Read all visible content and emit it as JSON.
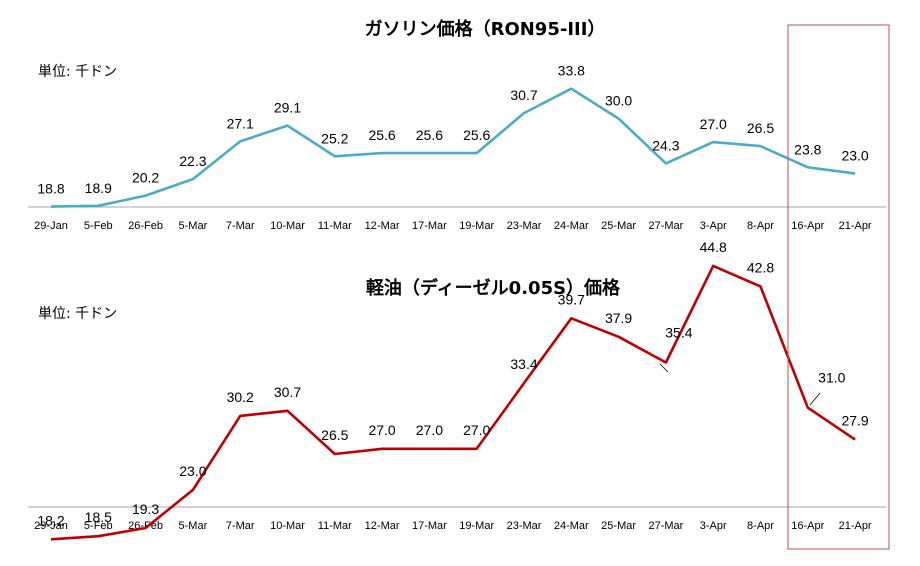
{
  "highlight_color": "#c0504d",
  "chart_data": [
    {
      "type": "line",
      "title": "ガソリン価格（RON95-III）",
      "unit_label": "単位: 千ドン",
      "color": "#4bacc6",
      "categories": [
        "29-Jan",
        "5-Feb",
        "26-Feb",
        "5-Mar",
        "7-Mar",
        "10-Mar",
        "11-Mar",
        "12-Mar",
        "17-Mar",
        "19-Mar",
        "23-Mar",
        "24-Mar",
        "25-Mar",
        "27-Mar",
        "3-Apr",
        "8-Apr",
        "16-Apr",
        "21-Apr"
      ],
      "values": [
        18.8,
        18.9,
        20.2,
        22.3,
        27.1,
        29.1,
        25.2,
        25.6,
        25.6,
        25.6,
        30.7,
        33.8,
        30.0,
        24.3,
        27.0,
        26.5,
        23.8,
        23.0
      ],
      "value_labels": [
        "18.8",
        "18.9",
        "20.2",
        "22.3",
        "27.1",
        "29.1",
        "25.2",
        "25.6",
        "25.6",
        "25.6",
        "30.7",
        "33.8",
        "30.0",
        "24.3",
        "27.0",
        "26.5",
        "23.8",
        "23.0"
      ],
      "ylim": [
        12,
        40
      ],
      "grid": false,
      "legend": "none"
    },
    {
      "type": "line",
      "title": "軽油（ディーゼル0.05S）価格",
      "unit_label": "単位: 千ドン",
      "color": "#c00000",
      "categories": [
        "29-Jan",
        "5-Feb",
        "26-Feb",
        "5-Mar",
        "7-Mar",
        "10-Mar",
        "11-Mar",
        "12-Mar",
        "17-Mar",
        "19-Mar",
        "23-Mar",
        "24-Mar",
        "25-Mar",
        "27-Mar",
        "3-Apr",
        "8-Apr",
        "16-Apr",
        "21-Apr"
      ],
      "values": [
        18.2,
        18.5,
        19.3,
        23.0,
        30.2,
        30.7,
        26.5,
        27.0,
        27.0,
        27.0,
        33.4,
        39.7,
        37.9,
        35.4,
        44.8,
        42.8,
        31.0,
        27.9
      ],
      "value_labels": [
        "18.2",
        "18.5",
        "19.3",
        "23.0",
        "30.2",
        "30.7",
        "26.5",
        "27.0",
        "27.0",
        "27.0",
        "33.4",
        "39.7",
        "37.9",
        "35.4",
        "44.8",
        "42.8",
        "31.0",
        "27.9"
      ],
      "ylim": [
        12,
        48
      ],
      "grid": false,
      "legend": "none"
    }
  ]
}
